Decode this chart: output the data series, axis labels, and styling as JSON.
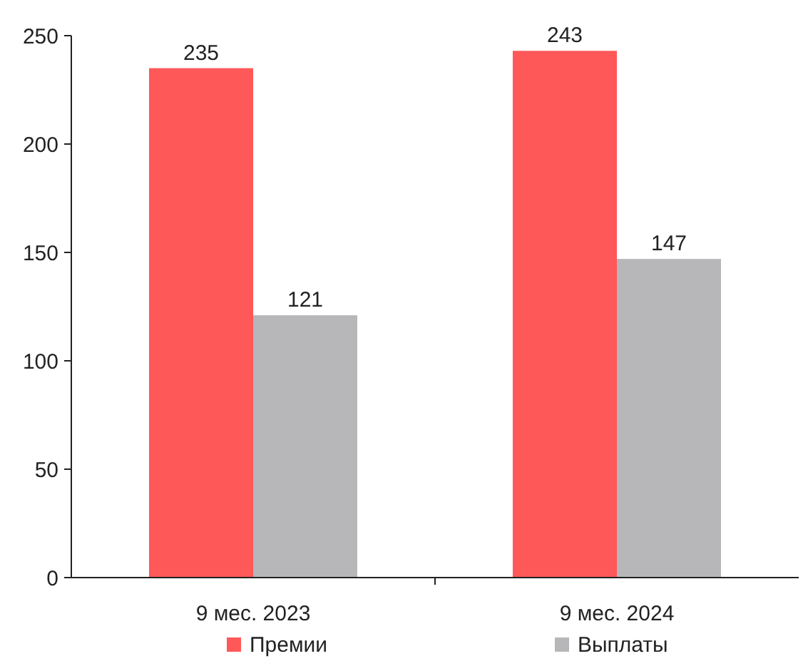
{
  "chart_data": {
    "type": "bar",
    "categories": [
      "9 мес. 2023",
      "9 мес. 2024"
    ],
    "series": [
      {
        "name": "Премии",
        "color": "#fe5858",
        "values": [
          235,
          243
        ]
      },
      {
        "name": "Выплаты",
        "color": "#b7b7b9",
        "values": [
          121,
          147
        ]
      }
    ],
    "ylim": [
      0,
      250
    ],
    "yticks": [
      0,
      50,
      100,
      150,
      200,
      250
    ],
    "grid": false,
    "legend": "bottom",
    "data_labels": true
  }
}
